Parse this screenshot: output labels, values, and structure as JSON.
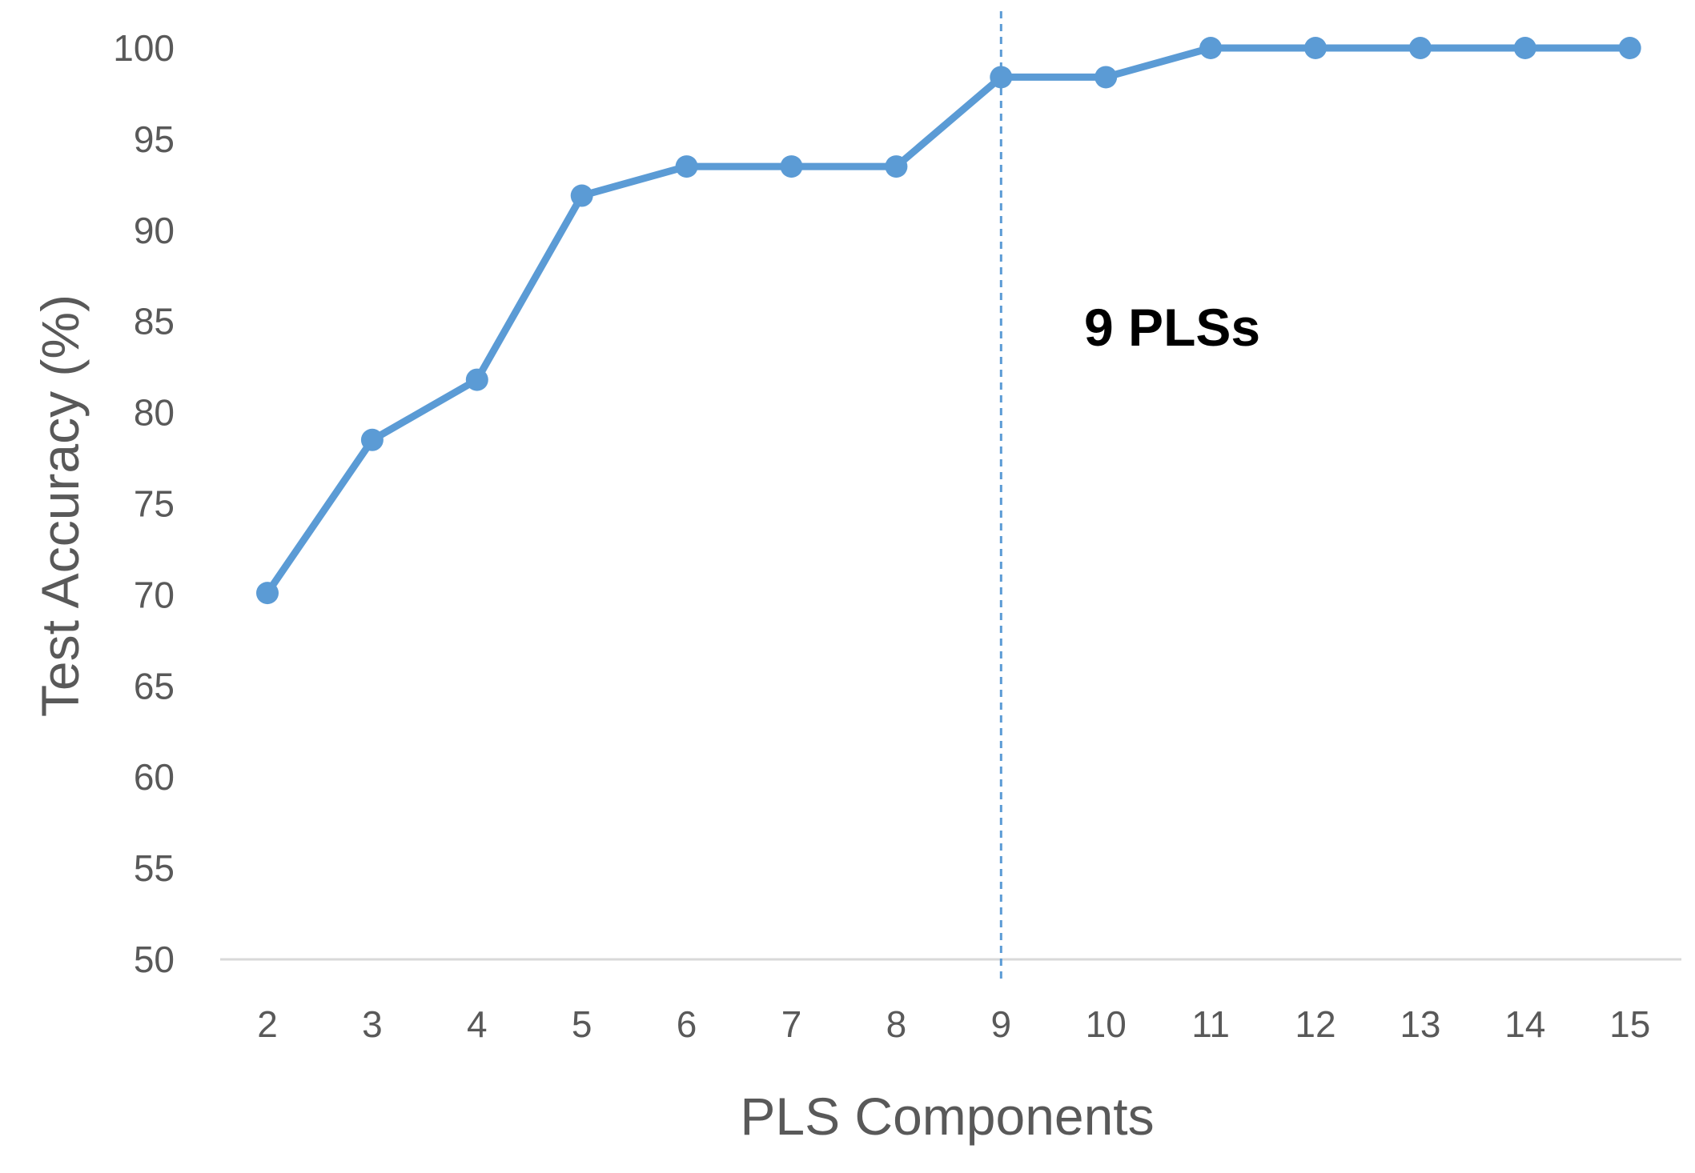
{
  "chart_data": {
    "type": "line",
    "x": [
      2,
      3,
      4,
      5,
      6,
      7,
      8,
      9,
      10,
      11,
      12,
      13,
      14,
      15
    ],
    "categories": [
      "2",
      "3",
      "4",
      "5",
      "6",
      "7",
      "8",
      "9",
      "10",
      "11",
      "12",
      "13",
      "14",
      "15"
    ],
    "series": [
      {
        "values": [
          70.1,
          78.5,
          81.8,
          91.9,
          93.5,
          93.5,
          93.5,
          98.4,
          98.4,
          100,
          100,
          100,
          100,
          100
        ]
      }
    ],
    "xlabel": "PLS Components",
    "ylabel": "Test  Accuracy (%)",
    "ylim": [
      50,
      100
    ],
    "yticks": [
      "50",
      "55",
      "60",
      "65",
      "70",
      "75",
      "80",
      "85",
      "90",
      "95",
      "100"
    ],
    "grid": false,
    "reference_line": {
      "x": 9,
      "style": "dashed"
    },
    "annotation": {
      "text": "9 PLSs"
    },
    "colors": {
      "series": "#5B9BD5",
      "axis": "#D9D9D9",
      "text": "#595959",
      "annotation": "#000000"
    }
  }
}
